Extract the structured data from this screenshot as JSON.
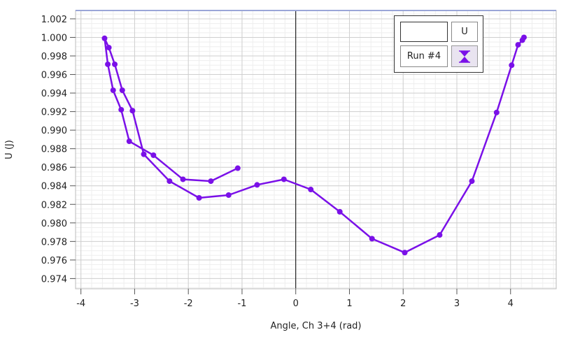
{
  "chart_data": {
    "type": "line",
    "xlabel": "Angle, Ch 3+4 (rad)",
    "ylabel": "U (J)",
    "xlim": [
      -4.1,
      4.85
    ],
    "ylim": [
      0.9729,
      1.0029
    ],
    "x_ticks": [
      -4,
      -3,
      -2,
      -1,
      0,
      1,
      2,
      3,
      4
    ],
    "x_tick_labels": [
      "-4",
      "-3",
      "-2",
      "-1",
      "0",
      "1",
      "2",
      "3",
      "4"
    ],
    "y_ticks": [
      0.974,
      0.976,
      0.978,
      0.98,
      0.982,
      0.984,
      0.986,
      0.988,
      0.99,
      0.992,
      0.994,
      0.996,
      0.998,
      1.0,
      1.002
    ],
    "y_tick_labels": [
      "0.974",
      "0.976",
      "0.978",
      "0.980",
      "0.982",
      "0.984",
      "0.986",
      "0.988",
      "0.990",
      "0.992",
      "0.994",
      "0.996",
      "0.998",
      "1.000",
      "1.002"
    ],
    "grid": true,
    "series": [
      {
        "name": "Run #4",
        "color": "#7a10e8",
        "x": [
          -1.08,
          -1.58,
          -2.1,
          -2.65,
          -3.1,
          -3.25,
          -3.4,
          -3.5,
          -3.56,
          -3.48,
          -3.37,
          -3.23,
          -3.04,
          -2.83,
          -2.35,
          -1.8,
          -1.25,
          -0.72,
          -0.22,
          0.28,
          0.82,
          1.42,
          2.03,
          2.68,
          3.28,
          3.74,
          4.02,
          4.14,
          4.22,
          4.25
        ],
        "y": [
          0.9859,
          0.9845,
          0.9847,
          0.9873,
          0.9888,
          0.9922,
          0.9943,
          0.9971,
          0.9999,
          0.9989,
          0.9971,
          0.9943,
          0.9921,
          0.9874,
          0.9845,
          0.9827,
          0.983,
          0.9841,
          0.9847,
          0.9836,
          0.9812,
          0.9783,
          0.9768,
          0.9787,
          0.9845,
          0.9919,
          0.997,
          0.9992,
          0.9997,
          1.0
        ]
      }
    ],
    "legend": {
      "placement": "top-right",
      "header": "U",
      "entry_label": "Run #4"
    }
  }
}
